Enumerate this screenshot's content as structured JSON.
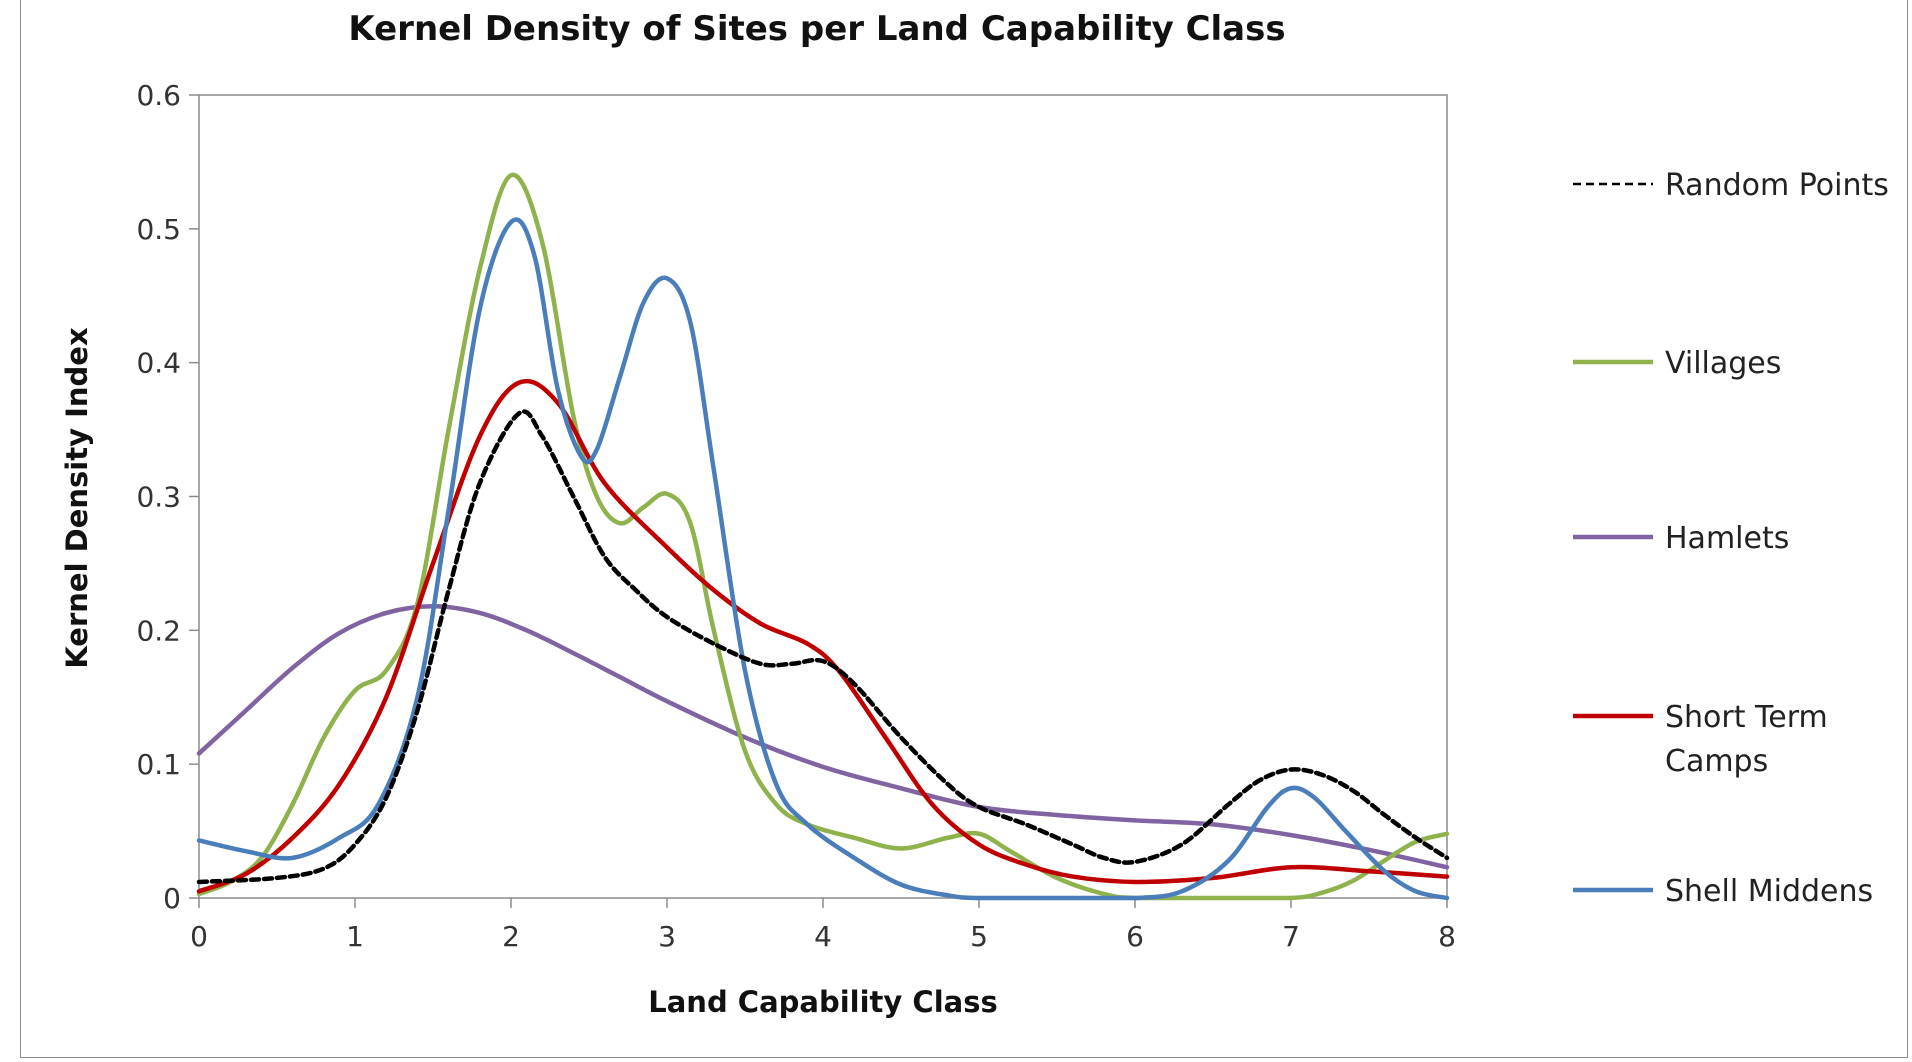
{
  "chart_data": {
    "type": "line",
    "title": "Kernel Density of Sites per Land Capability Class",
    "xlabel": "Land Capability Class",
    "ylabel": "Kernel Density Index",
    "xlim": [
      0,
      8
    ],
    "ylim": [
      0,
      0.6
    ],
    "x_ticks": [
      0,
      1,
      2,
      3,
      4,
      5,
      6,
      7,
      8
    ],
    "y_ticks": [
      0,
      0.1,
      0.2,
      0.3,
      0.4,
      0.5,
      0.6
    ],
    "y_tick_labels": [
      "0",
      "0.1",
      "0.2",
      "0.3",
      "0.4",
      "0.5",
      "0.6"
    ],
    "grid": false,
    "legend_position": "right",
    "series": [
      {
        "name": "Random Points",
        "color": "#000000",
        "dashed": true,
        "x": [
          0,
          0.5,
          0.8,
          1.0,
          1.2,
          1.4,
          1.6,
          1.8,
          2.05,
          2.2,
          2.4,
          2.6,
          2.8,
          3.0,
          3.3,
          3.6,
          3.8,
          4.0,
          4.2,
          4.5,
          4.8,
          5.0,
          5.3,
          5.6,
          5.8,
          6.0,
          6.3,
          6.6,
          6.8,
          7.0,
          7.2,
          7.4,
          7.6,
          7.8,
          8.0
        ],
        "y": [
          0.012,
          0.015,
          0.022,
          0.04,
          0.075,
          0.14,
          0.23,
          0.31,
          0.362,
          0.345,
          0.3,
          0.255,
          0.23,
          0.21,
          0.19,
          0.175,
          0.175,
          0.177,
          0.16,
          0.12,
          0.085,
          0.068,
          0.055,
          0.04,
          0.03,
          0.027,
          0.04,
          0.07,
          0.088,
          0.096,
          0.092,
          0.08,
          0.062,
          0.045,
          0.03
        ]
      },
      {
        "name": "Villages",
        "color": "#8fb24d",
        "dashed": false,
        "x": [
          0,
          0.2,
          0.4,
          0.6,
          0.8,
          1.0,
          1.2,
          1.4,
          1.6,
          1.8,
          2.0,
          2.2,
          2.4,
          2.55,
          2.7,
          2.85,
          3.0,
          3.15,
          3.3,
          3.5,
          3.7,
          3.9,
          4.2,
          4.5,
          4.8,
          5.0,
          5.2,
          5.5,
          5.8,
          6.0,
          6.5,
          7.0,
          7.2,
          7.4,
          7.6,
          7.8,
          8.0
        ],
        "y": [
          0.003,
          0.012,
          0.03,
          0.07,
          0.12,
          0.155,
          0.17,
          0.22,
          0.35,
          0.47,
          0.54,
          0.49,
          0.36,
          0.3,
          0.28,
          0.292,
          0.302,
          0.28,
          0.2,
          0.11,
          0.07,
          0.055,
          0.045,
          0.037,
          0.045,
          0.048,
          0.035,
          0.015,
          0.003,
          0.0,
          0.0,
          0.0,
          0.004,
          0.013,
          0.028,
          0.042,
          0.048
        ]
      },
      {
        "name": "Hamlets",
        "color": "#8064a2",
        "dashed": false,
        "x": [
          0,
          0.3,
          0.6,
          0.9,
          1.2,
          1.5,
          1.8,
          2.1,
          2.4,
          2.7,
          3.0,
          3.5,
          4.0,
          4.5,
          5.0,
          5.5,
          6.0,
          6.5,
          7.0,
          7.5,
          8.0
        ],
        "y": [
          0.108,
          0.14,
          0.172,
          0.198,
          0.213,
          0.218,
          0.213,
          0.2,
          0.183,
          0.165,
          0.147,
          0.12,
          0.098,
          0.082,
          0.068,
          0.062,
          0.058,
          0.055,
          0.047,
          0.036,
          0.023
        ]
      },
      {
        "name": "Short Term Camps",
        "color": "#c00000",
        "dashed": false,
        "x": [
          0,
          0.3,
          0.6,
          0.9,
          1.2,
          1.5,
          1.8,
          2.05,
          2.3,
          2.6,
          3.0,
          3.3,
          3.6,
          3.9,
          4.1,
          4.4,
          4.7,
          5.0,
          5.3,
          5.6,
          6.0,
          6.5,
          7.0,
          7.5,
          8.0
        ],
        "y": [
          0.005,
          0.018,
          0.045,
          0.085,
          0.15,
          0.25,
          0.345,
          0.385,
          0.37,
          0.31,
          0.262,
          0.23,
          0.205,
          0.19,
          0.17,
          0.12,
          0.07,
          0.04,
          0.025,
          0.016,
          0.012,
          0.015,
          0.023,
          0.02,
          0.016
        ]
      },
      {
        "name": "Shell Middens",
        "color": "#4a7ebb",
        "dashed": false,
        "x": [
          0,
          0.3,
          0.6,
          0.9,
          1.15,
          1.4,
          1.6,
          1.8,
          2.0,
          2.15,
          2.3,
          2.45,
          2.55,
          2.7,
          2.85,
          3.0,
          3.15,
          3.3,
          3.5,
          3.7,
          3.9,
          4.2,
          4.5,
          4.8,
          5.0,
          5.5,
          6.0,
          6.3,
          6.6,
          6.85,
          7.0,
          7.15,
          7.35,
          7.6,
          7.8,
          8.0
        ],
        "y": [
          0.043,
          0.035,
          0.03,
          0.045,
          0.07,
          0.15,
          0.29,
          0.44,
          0.505,
          0.48,
          0.38,
          0.33,
          0.335,
          0.39,
          0.445,
          0.463,
          0.43,
          0.32,
          0.17,
          0.085,
          0.055,
          0.03,
          0.01,
          0.002,
          0.0,
          0.0,
          0.0,
          0.005,
          0.028,
          0.068,
          0.082,
          0.075,
          0.05,
          0.02,
          0.005,
          0.0
        ]
      }
    ],
    "legend_labels": [
      {
        "lines": [
          "Random Points"
        ]
      },
      {
        "lines": [
          "Villages"
        ]
      },
      {
        "lines": [
          "Hamlets"
        ]
      },
      {
        "lines": [
          "Short Term",
          "Camps"
        ]
      },
      {
        "lines": [
          "Shell Middens"
        ]
      }
    ]
  }
}
